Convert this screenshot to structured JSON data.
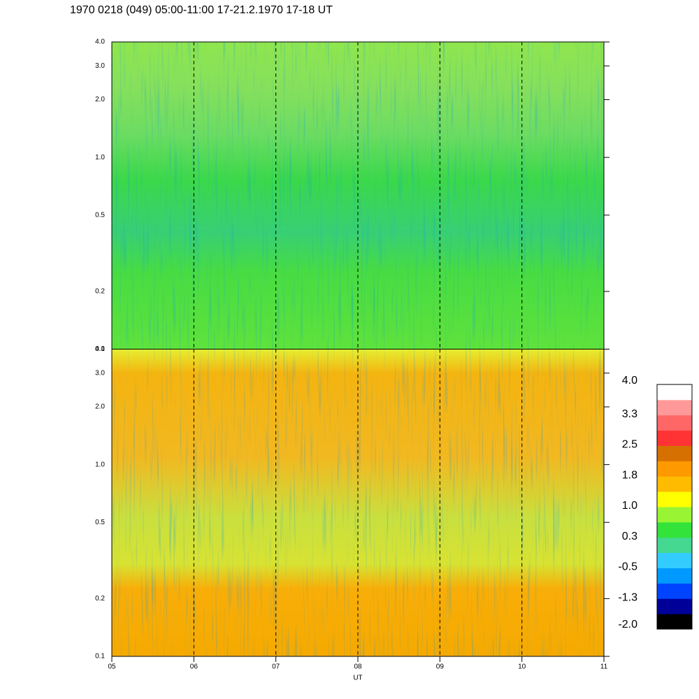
{
  "chart_data": {
    "type": "spectrogram",
    "title": "1970 0218 (049) 05:00-11:00 17-21.2.1970  17-18 UT",
    "xlabel": "UT",
    "xlim": [
      5,
      11
    ],
    "xticks": [
      {
        "value": 5,
        "label": "05"
      },
      {
        "value": 6,
        "label": "06"
      },
      {
        "value": 7,
        "label": "07"
      },
      {
        "value": 8,
        "label": "08"
      },
      {
        "value": 9,
        "label": "09"
      },
      {
        "value": 10,
        "label": "10"
      },
      {
        "value": 11,
        "label": "11"
      }
    ],
    "grid": "dashed",
    "panels": [
      {
        "log_y": true,
        "ylim": [
          0.1,
          4.0
        ],
        "yticks": [
          0.1,
          0.2,
          0.5,
          {
            "value": 1,
            "label": "1.0"
          },
          {
            "value": 2,
            "label": "2.0"
          },
          {
            "value": 3,
            "label": "3.0"
          },
          {
            "value": 4,
            "label": "4.0"
          }
        ]
      },
      {
        "log_y": true,
        "ylim": [
          0.1,
          4.0
        ],
        "yticks": [
          0.1,
          0.2,
          0.5,
          {
            "value": 1,
            "label": "1.0"
          },
          {
            "value": 2,
            "label": "2.0"
          },
          {
            "value": 3,
            "label": "3.0"
          },
          {
            "value": 4,
            "label": "4.0"
          }
        ]
      }
    ],
    "colorbar": {
      "lim": [
        -2.0,
        4.0
      ],
      "colors": [
        "#000000",
        "#000099",
        "#0044ff",
        "#0099ff",
        "#33ccff",
        "#44d890",
        "#33e33a",
        "#99f533",
        "#ffff00",
        "#ffbb00",
        "#ff9900",
        "#d67000",
        "#ff3333",
        "#ff6666",
        "#ff9999",
        "#ffffff"
      ],
      "ticks": [
        {
          "value": 4,
          "label": "4.0"
        },
        {
          "value": 3.25,
          "label": "3.3"
        },
        2.5,
        {
          "value": 1.75,
          "label": "1.8"
        },
        {
          "value": 1,
          "label": "1.0"
        },
        {
          "value": 0.25,
          "label": "0.3"
        },
        -0.5,
        {
          "value": -1.25,
          "label": "-1.3"
        },
        {
          "value": -2,
          "label": "-2.0"
        }
      ]
    }
  }
}
